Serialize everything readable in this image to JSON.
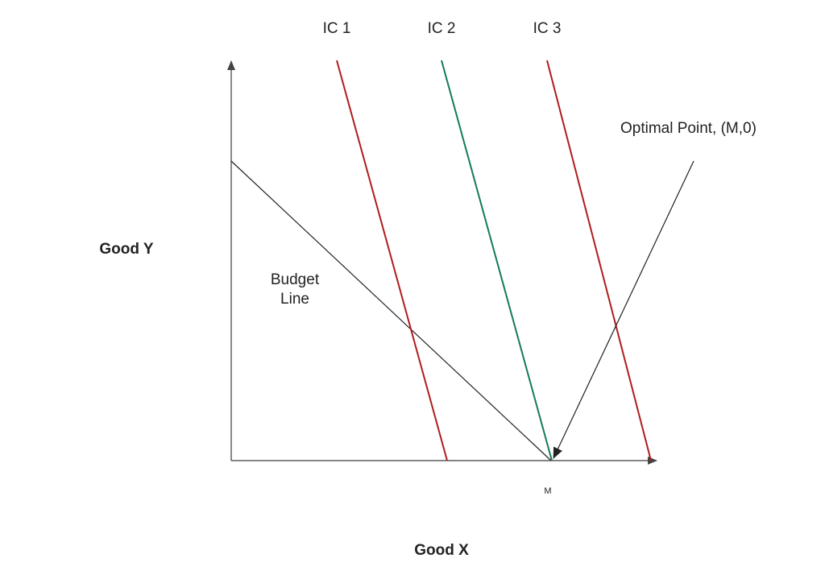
{
  "labels": {
    "y_axis": "Good Y",
    "x_axis": "Good X",
    "budget_line_1": "Budget",
    "budget_line_2": "Line",
    "m_tick": "M",
    "optimal_point": "Optimal Point, (M,0)"
  },
  "curves": [
    {
      "name": "IC 1",
      "color": "#b01c1c"
    },
    {
      "name": "IC 2",
      "color": "#147a5a"
    },
    {
      "name": "IC 3",
      "color": "#b01c1c"
    }
  ],
  "colors": {
    "axis": "#3a3a3a",
    "budget_line": "#222222",
    "arrow": "#222222"
  }
}
